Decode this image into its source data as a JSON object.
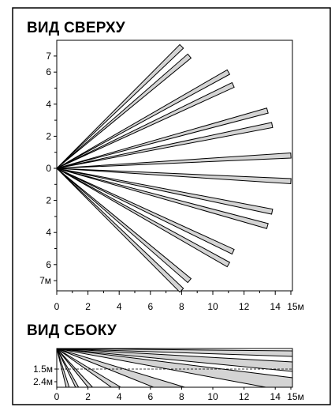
{
  "top_view": {
    "title": "ВИД СВЕРХУ",
    "y_tick_labels": [
      "7",
      "6",
      "4",
      "2",
      "0",
      "2",
      "4",
      "6",
      "7м"
    ],
    "x_tick_labels": [
      "0",
      "2",
      "4",
      "6",
      "8",
      "10",
      "12",
      "14",
      "15м"
    ],
    "beam_color": "#d4d4d4",
    "beams_outer_ends_m": [
      {
        "x": 8.0,
        "y": 7.6
      },
      {
        "x": 8.5,
        "y": 7.0
      },
      {
        "x": 11.0,
        "y": 6.0
      },
      {
        "x": 11.3,
        "y": 5.2
      },
      {
        "x": 13.5,
        "y": 3.6
      },
      {
        "x": 13.8,
        "y": 2.7
      },
      {
        "x": 15.0,
        "y": 0.8
      },
      {
        "x": 15.0,
        "y": -0.8
      },
      {
        "x": 13.8,
        "y": -2.7
      },
      {
        "x": 13.5,
        "y": -3.6
      },
      {
        "x": 11.3,
        "y": -5.2
      },
      {
        "x": 11.0,
        "y": -6.0
      },
      {
        "x": 8.5,
        "y": -7.0
      },
      {
        "x": 8.0,
        "y": -7.6
      }
    ]
  },
  "side_view": {
    "title": "ВИД СБОКУ",
    "y_tick_labels": [
      "1.5м",
      "2.4м"
    ],
    "x_tick_labels": [
      "0",
      "2",
      "4",
      "6",
      "8",
      "10",
      "12",
      "14",
      "15м"
    ],
    "beam_color": "#d4d4d4"
  }
}
